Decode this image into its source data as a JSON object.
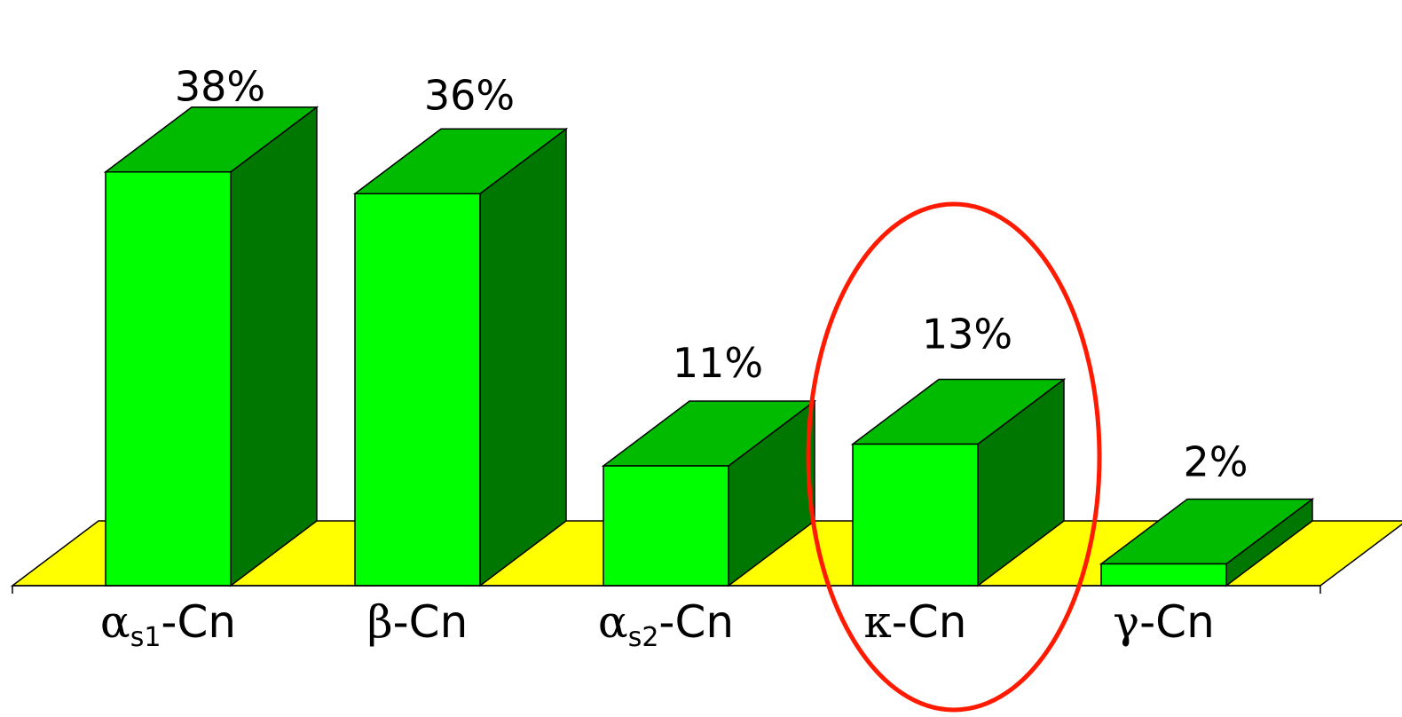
{
  "chart_data": {
    "type": "bar",
    "categories": [
      {
        "greek": "α",
        "sub": "s1",
        "suffix": "-Cn"
      },
      {
        "greek": "β",
        "sub": "",
        "suffix": "-Cn"
      },
      {
        "greek": "α",
        "sub": "s2",
        "suffix": "-Cn"
      },
      {
        "greek": "κ",
        "sub": "",
        "suffix": "-Cn"
      },
      {
        "greek": "γ",
        "sub": "",
        "suffix": "-Cn"
      }
    ],
    "values": [
      38,
      36,
      11,
      13,
      2
    ],
    "data_labels": [
      "38%",
      "36%",
      "11%",
      "13%",
      "2%"
    ],
    "highlighted_index": 3,
    "style": "3d-column",
    "colors": {
      "bar_front": "#00ff00",
      "bar_top": "#00bb00",
      "bar_side": "#007700",
      "floor": "#ffff00",
      "highlight_ellipse": "#ff1a00"
    }
  }
}
